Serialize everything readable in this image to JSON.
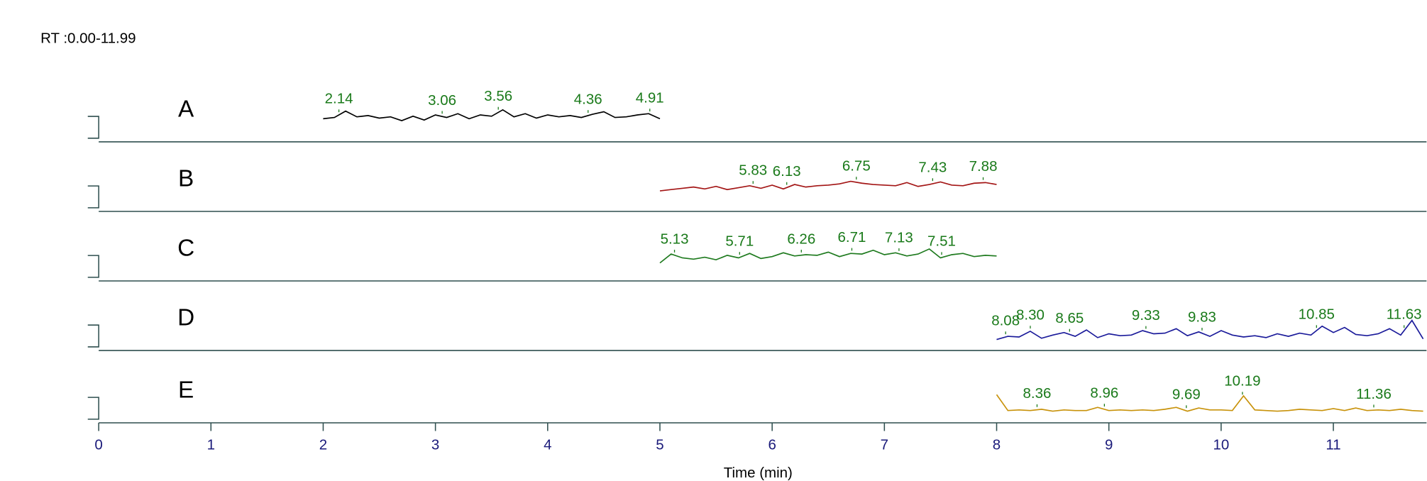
{
  "chart_data": {
    "type": "line",
    "subtitle": "RT :0.00-11.99",
    "x_label": "Time (min)",
    "xlim": [
      0,
      11.83
    ],
    "xticks": [
      0,
      1,
      2,
      3,
      4,
      5,
      6,
      7,
      8,
      9,
      10,
      11
    ],
    "peak_color": "#1a7a1a",
    "series": [
      {
        "name": "A",
        "color": "#000000",
        "x": [
          2.0,
          2.1,
          2.2,
          2.3,
          2.4,
          2.5,
          2.6,
          2.7,
          2.8,
          2.9,
          3.0,
          3.1,
          3.2,
          3.3,
          3.4,
          3.5,
          3.6,
          3.7,
          3.8,
          3.9,
          4.0,
          4.1,
          4.2,
          4.3,
          4.4,
          4.5,
          4.6,
          4.7,
          4.8,
          4.9,
          5.0
        ],
        "values": [
          22,
          24,
          34,
          25,
          27,
          23,
          25,
          19,
          26,
          20,
          28,
          24,
          30,
          22,
          28,
          26,
          36,
          25,
          30,
          23,
          28,
          25,
          27,
          24,
          29,
          33,
          24,
          25,
          28,
          30,
          22
        ],
        "peaks": [
          2.14,
          3.06,
          3.56,
          4.36,
          4.91
        ]
      },
      {
        "name": "B",
        "color": "#a31515",
        "x": [
          5.0,
          5.1,
          5.2,
          5.3,
          5.4,
          5.5,
          5.6,
          5.7,
          5.8,
          5.9,
          6.0,
          6.1,
          6.2,
          6.3,
          6.4,
          6.5,
          6.6,
          6.7,
          6.8,
          6.9,
          7.0,
          7.1,
          7.2,
          7.3,
          7.4,
          7.5,
          7.6,
          7.7,
          7.8,
          7.9,
          8.0
        ],
        "values": [
          18,
          20,
          22,
          24,
          21,
          25,
          20,
          23,
          26,
          22,
          27,
          21,
          28,
          24,
          26,
          27,
          29,
          33,
          30,
          28,
          27,
          26,
          31,
          25,
          28,
          32,
          27,
          26,
          30,
          31,
          28
        ],
        "peaks": [
          5.83,
          6.13,
          6.75,
          7.43,
          7.88
        ]
      },
      {
        "name": "C",
        "color": "#1e7a1e",
        "x": [
          5.0,
          5.1,
          5.2,
          5.3,
          5.4,
          5.5,
          5.6,
          5.7,
          5.8,
          5.9,
          6.0,
          6.1,
          6.2,
          6.3,
          6.4,
          6.5,
          6.6,
          6.7,
          6.8,
          6.9,
          7.0,
          7.1,
          7.2,
          7.3,
          7.4,
          7.5,
          7.6,
          7.7,
          7.8,
          7.9,
          8.0
        ],
        "values": [
          14,
          28,
          22,
          20,
          23,
          19,
          26,
          22,
          29,
          21,
          24,
          30,
          25,
          27,
          26,
          31,
          24,
          29,
          28,
          34,
          27,
          30,
          25,
          28,
          36,
          22,
          27,
          29,
          24,
          26,
          25
        ],
        "peaks": [
          5.13,
          5.71,
          6.26,
          6.71,
          7.13,
          7.51
        ]
      },
      {
        "name": "D",
        "color": "#1a1a9a",
        "x": [
          8.0,
          8.1,
          8.2,
          8.3,
          8.4,
          8.5,
          8.6,
          8.7,
          8.8,
          8.9,
          9.0,
          9.1,
          9.2,
          9.3,
          9.4,
          9.5,
          9.6,
          9.7,
          9.8,
          9.9,
          10.0,
          10.1,
          10.2,
          10.3,
          10.4,
          10.5,
          10.6,
          10.7,
          10.8,
          10.9,
          11.0,
          11.1,
          11.2,
          11.3,
          11.4,
          11.5,
          11.6,
          11.7,
          11.8
        ],
        "values": [
          3,
          8,
          7,
          16,
          5,
          10,
          14,
          8,
          18,
          6,
          12,
          9,
          10,
          17,
          12,
          13,
          20,
          9,
          15,
          8,
          17,
          10,
          7,
          9,
          6,
          12,
          8,
          13,
          10,
          24,
          14,
          22,
          11,
          9,
          12,
          20,
          10,
          33,
          4
        ],
        "peaks": [
          8.08,
          {
            "value": 8.3,
            "label": "8.30"
          },
          8.65,
          9.33,
          9.83,
          10.85,
          11.63
        ]
      },
      {
        "name": "E",
        "color": "#c8920a",
        "x": [
          8.0,
          8.1,
          8.2,
          8.3,
          8.4,
          8.5,
          8.6,
          8.7,
          8.8,
          8.9,
          9.0,
          9.1,
          9.2,
          9.3,
          9.4,
          9.5,
          9.6,
          9.7,
          9.8,
          9.9,
          10.0,
          10.1,
          10.2,
          10.3,
          10.4,
          10.5,
          10.6,
          10.7,
          10.8,
          10.9,
          11.0,
          11.1,
          11.2,
          11.3,
          11.4,
          11.5,
          11.6,
          11.7,
          11.8
        ],
        "values": [
          30,
          5,
          6,
          5,
          7,
          4,
          6,
          5,
          5,
          10,
          5,
          6,
          5,
          6,
          5,
          7,
          10,
          4,
          9,
          6,
          6,
          5,
          28,
          6,
          5,
          4,
          5,
          7,
          6,
          5,
          8,
          5,
          9,
          5,
          6,
          5,
          7,
          5,
          4
        ],
        "peaks": [
          8.36,
          8.96,
          9.69,
          10.19,
          11.36
        ]
      }
    ]
  }
}
